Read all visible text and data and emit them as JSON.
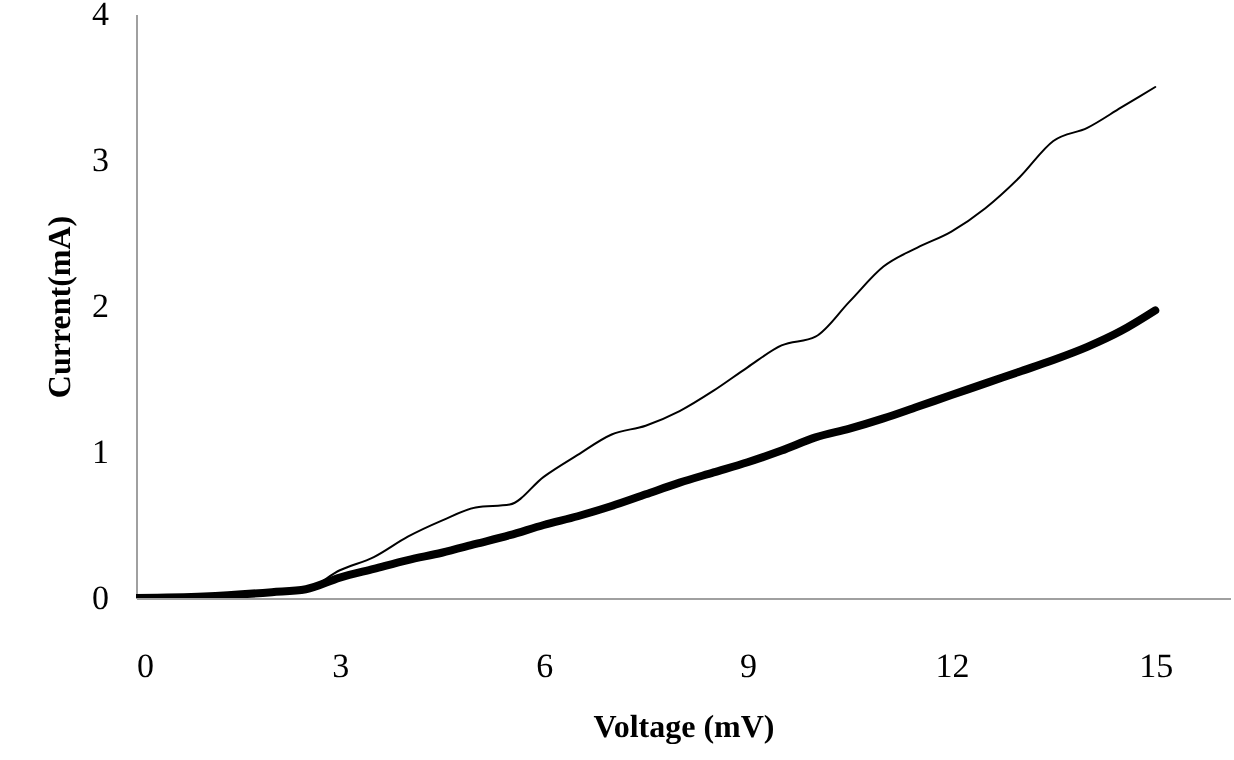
{
  "chart_data": {
    "type": "line",
    "xlabel": "Voltage (mV)",
    "ylabel": "Current(mA)",
    "x": [
      0,
      1,
      2,
      2.5,
      3,
      3.5,
      4,
      4.5,
      5,
      5.5,
      6,
      6.5,
      7,
      7.5,
      8,
      8.5,
      9,
      9.5,
      10,
      10.5,
      11,
      11.5,
      12,
      12.5,
      13,
      13.5,
      14,
      14.5,
      15
    ],
    "series": [
      {
        "color": "#000000",
        "values": [
          0,
          0.02,
          0.04,
          0.06,
          0.19,
          0.28,
          0.42,
          0.53,
          0.62,
          0.64,
          0.83,
          0.98,
          1.12,
          1.18,
          1.28,
          1.42,
          1.58,
          1.73,
          1.79,
          2.03,
          2.27,
          2.4,
          2.51,
          2.67,
          2.88,
          3.13,
          3.22,
          3.36,
          3.5
        ]
      },
      {
        "color": "#000000",
        "values": [
          0,
          0.01,
          0.04,
          0.06,
          0.14,
          0.2,
          0.26,
          0.31,
          0.37,
          0.43,
          0.5,
          0.56,
          0.63,
          0.71,
          0.79,
          0.86,
          0.93,
          1.01,
          1.1,
          1.16,
          1.23,
          1.31,
          1.39,
          1.47,
          1.55,
          1.63,
          1.72,
          1.83,
          1.97
        ]
      }
    ],
    "xlim": [
      0,
      16.1
    ],
    "xticks": [
      0,
      3,
      6,
      9,
      12,
      15
    ],
    "ylim": [
      0,
      4
    ],
    "yticks": [
      0,
      1,
      2,
      3,
      4
    ],
    "grid": false,
    "marker": "none",
    "line_style": "solid"
  }
}
